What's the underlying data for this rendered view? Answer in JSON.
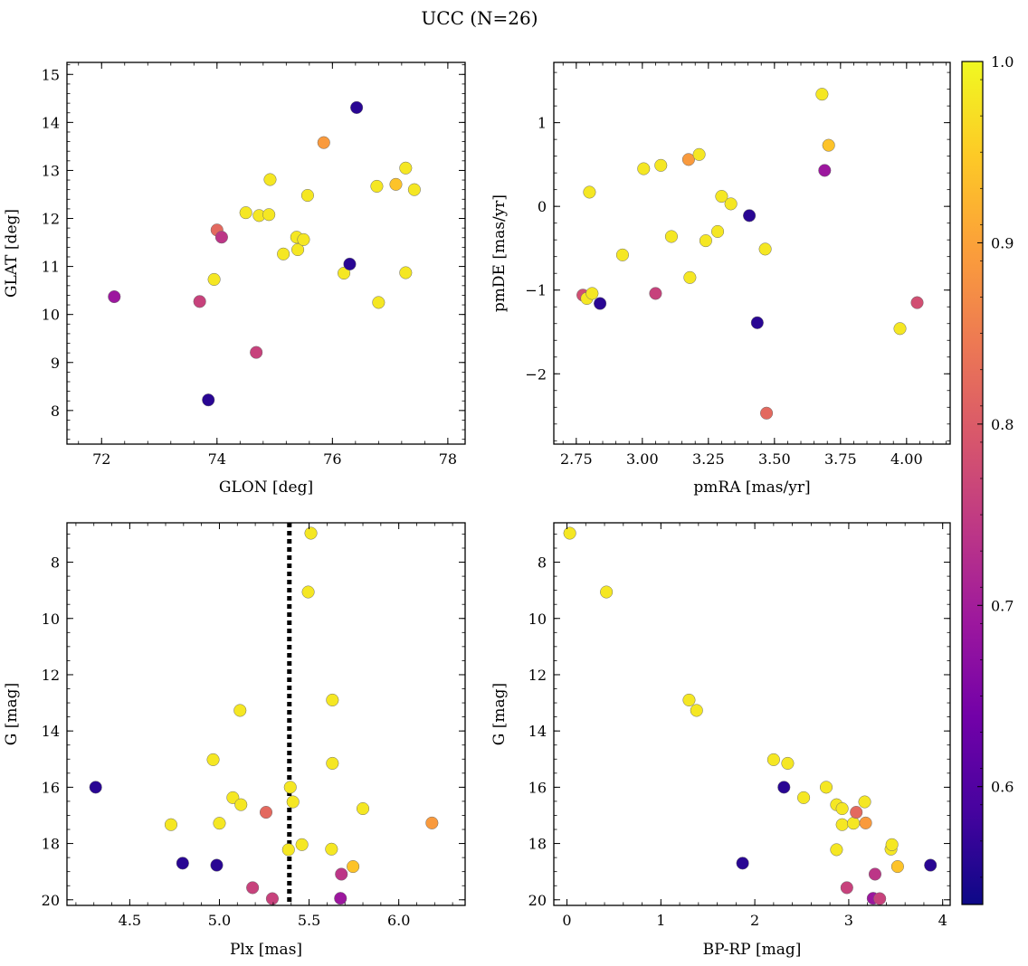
{
  "figure": {
    "title": "UCC (N=26)"
  },
  "colorbar": {
    "cmap": [
      "#0d0887",
      "#46039f",
      "#7201a8",
      "#9c179e",
      "#bd3786",
      "#d8576b",
      "#ed7953",
      "#fb9f3a",
      "#fdca26",
      "#f0f921"
    ],
    "range": [
      0.535,
      1.0
    ],
    "ticks": [
      0.6,
      0.7,
      0.8,
      0.9,
      1.0
    ],
    "tick_labels": [
      "0.6",
      "0.7",
      "0.8",
      "0.9",
      "1.0"
    ]
  },
  "chart_data": [
    {
      "type": "scatter",
      "name": "glon-glat",
      "xlabel": "GLON [deg]",
      "ylabel": "GLAT [deg]",
      "xlim": [
        71.4,
        78.3
      ],
      "ylim": [
        7.3,
        15.25
      ],
      "yinvert": false,
      "xticks": [
        72,
        74,
        76,
        78
      ],
      "xtick_labels": [
        "72",
        "74",
        "76",
        "78"
      ],
      "yticks": [
        8,
        9,
        10,
        11,
        12,
        13,
        14,
        15
      ],
      "ytick_labels": [
        "8",
        "9",
        "10",
        "11",
        "12",
        "13",
        "14",
        "15"
      ],
      "points": [
        {
          "x": 72.22,
          "y": 10.37,
          "c": 0.69
        },
        {
          "x": 73.7,
          "y": 10.27,
          "c": 0.76
        },
        {
          "x": 73.85,
          "y": 8.22,
          "c": 0.56
        },
        {
          "x": 73.95,
          "y": 10.73,
          "c": 0.98
        },
        {
          "x": 74.0,
          "y": 11.76,
          "c": 0.82
        },
        {
          "x": 74.08,
          "y": 11.61,
          "c": 0.74
        },
        {
          "x": 74.5,
          "y": 12.12,
          "c": 0.98
        },
        {
          "x": 74.68,
          "y": 9.21,
          "c": 0.76
        },
        {
          "x": 74.73,
          "y": 12.06,
          "c": 0.98
        },
        {
          "x": 74.9,
          "y": 12.08,
          "c": 0.98
        },
        {
          "x": 74.92,
          "y": 12.81,
          "c": 0.98
        },
        {
          "x": 75.15,
          "y": 11.26,
          "c": 0.98
        },
        {
          "x": 75.38,
          "y": 11.61,
          "c": 0.98
        },
        {
          "x": 75.4,
          "y": 11.35,
          "c": 0.98
        },
        {
          "x": 75.5,
          "y": 11.56,
          "c": 0.98
        },
        {
          "x": 75.57,
          "y": 12.48,
          "c": 0.98
        },
        {
          "x": 75.85,
          "y": 13.58,
          "c": 0.89
        },
        {
          "x": 76.2,
          "y": 10.86,
          "c": 0.98
        },
        {
          "x": 76.3,
          "y": 11.05,
          "c": 0.56
        },
        {
          "x": 76.42,
          "y": 14.31,
          "c": 0.56
        },
        {
          "x": 76.77,
          "y": 12.67,
          "c": 0.98
        },
        {
          "x": 76.8,
          "y": 10.25,
          "c": 0.98
        },
        {
          "x": 77.1,
          "y": 12.71,
          "c": 0.94
        },
        {
          "x": 77.27,
          "y": 13.05,
          "c": 0.98
        },
        {
          "x": 77.27,
          "y": 10.87,
          "c": 0.98
        },
        {
          "x": 77.42,
          "y": 12.6,
          "c": 0.98
        }
      ]
    },
    {
      "type": "scatter",
      "name": "pmra-pmde",
      "xlabel": "pmRA [mas/yr]",
      "ylabel": "pmDE [mas/yr]",
      "xlim": [
        2.665,
        4.165
      ],
      "ylim": [
        -2.84,
        1.72
      ],
      "yinvert": false,
      "xticks": [
        2.75,
        3.0,
        3.25,
        3.5,
        3.75,
        4.0
      ],
      "xtick_labels": [
        "2.75",
        "3.00",
        "3.25",
        "3.50",
        "3.75",
        "4.00"
      ],
      "yticks": [
        -2,
        -1,
        0,
        1
      ],
      "ytick_labels": [
        "−2",
        "−1",
        "0",
        "1"
      ],
      "points": [
        {
          "x": 2.775,
          "y": -1.06,
          "c": 0.78
        },
        {
          "x": 2.79,
          "y": -1.1,
          "c": 0.98
        },
        {
          "x": 2.8,
          "y": 0.17,
          "c": 0.98
        },
        {
          "x": 2.81,
          "y": -1.04,
          "c": 0.98
        },
        {
          "x": 2.84,
          "y": -1.16,
          "c": 0.56
        },
        {
          "x": 2.925,
          "y": -0.58,
          "c": 0.98
        },
        {
          "x": 3.005,
          "y": 0.45,
          "c": 0.98
        },
        {
          "x": 3.05,
          "y": -1.04,
          "c": 0.76
        },
        {
          "x": 3.07,
          "y": 0.49,
          "c": 0.98
        },
        {
          "x": 3.11,
          "y": -0.36,
          "c": 0.98
        },
        {
          "x": 3.175,
          "y": 0.56,
          "c": 0.89
        },
        {
          "x": 3.18,
          "y": -0.85,
          "c": 0.98
        },
        {
          "x": 3.215,
          "y": 0.62,
          "c": 0.98
        },
        {
          "x": 3.24,
          "y": -0.41,
          "c": 0.98
        },
        {
          "x": 3.285,
          "y": -0.3,
          "c": 0.98
        },
        {
          "x": 3.3,
          "y": 0.12,
          "c": 0.98
        },
        {
          "x": 3.335,
          "y": 0.03,
          "c": 0.98
        },
        {
          "x": 3.405,
          "y": -0.11,
          "c": 0.56
        },
        {
          "x": 3.435,
          "y": -1.39,
          "c": 0.56
        },
        {
          "x": 3.465,
          "y": -0.51,
          "c": 0.98
        },
        {
          "x": 3.47,
          "y": -2.47,
          "c": 0.82
        },
        {
          "x": 3.68,
          "y": 1.34,
          "c": 0.98
        },
        {
          "x": 3.69,
          "y": 0.43,
          "c": 0.69
        },
        {
          "x": 3.705,
          "y": 0.73,
          "c": 0.94
        },
        {
          "x": 3.975,
          "y": -1.46,
          "c": 0.98
        },
        {
          "x": 4.04,
          "y": -1.15,
          "c": 0.78
        }
      ]
    },
    {
      "type": "scatter",
      "name": "plx-g",
      "xlabel": "Plx [mas]",
      "ylabel": "G [mag]",
      "xlim": [
        4.15,
        6.37
      ],
      "ylim": [
        6.6,
        20.2
      ],
      "yinvert": true,
      "xticks": [
        4.5,
        5.0,
        5.5,
        6.0
      ],
      "xtick_labels": [
        "4.5",
        "5.0",
        "5.5",
        "6.0"
      ],
      "yticks": [
        8,
        10,
        12,
        14,
        16,
        18,
        20
      ],
      "ytick_labels": [
        "8",
        "10",
        "12",
        "14",
        "16",
        "18",
        "20"
      ],
      "vline": {
        "x": 5.39,
        "style": "dotted"
      },
      "points": [
        {
          "x": 4.31,
          "y": 16.0,
          "c": 0.56
        },
        {
          "x": 4.73,
          "y": 17.33,
          "c": 0.98
        },
        {
          "x": 4.795,
          "y": 18.7,
          "c": 0.56
        },
        {
          "x": 4.965,
          "y": 15.02,
          "c": 0.98
        },
        {
          "x": 4.985,
          "y": 18.77,
          "c": 0.56
        },
        {
          "x": 5.0,
          "y": 17.28,
          "c": 0.98
        },
        {
          "x": 5.075,
          "y": 16.37,
          "c": 0.98
        },
        {
          "x": 5.115,
          "y": 13.27,
          "c": 0.98
        },
        {
          "x": 5.12,
          "y": 16.62,
          "c": 0.98
        },
        {
          "x": 5.185,
          "y": 19.57,
          "c": 0.76
        },
        {
          "x": 5.26,
          "y": 16.89,
          "c": 0.82
        },
        {
          "x": 5.295,
          "y": 19.96,
          "c": 0.76
        },
        {
          "x": 5.385,
          "y": 18.22,
          "c": 0.98
        },
        {
          "x": 5.395,
          "y": 16.0,
          "c": 0.98
        },
        {
          "x": 5.41,
          "y": 16.52,
          "c": 0.98
        },
        {
          "x": 5.46,
          "y": 18.04,
          "c": 0.98
        },
        {
          "x": 5.495,
          "y": 9.06,
          "c": 0.98
        },
        {
          "x": 5.51,
          "y": 6.97,
          "c": 0.98
        },
        {
          "x": 5.625,
          "y": 18.2,
          "c": 0.98
        },
        {
          "x": 5.63,
          "y": 15.15,
          "c": 0.98
        },
        {
          "x": 5.63,
          "y": 12.9,
          "c": 0.98
        },
        {
          "x": 5.675,
          "y": 19.95,
          "c": 0.69
        },
        {
          "x": 5.68,
          "y": 19.09,
          "c": 0.74
        },
        {
          "x": 5.745,
          "y": 18.82,
          "c": 0.94
        },
        {
          "x": 5.8,
          "y": 16.76,
          "c": 0.98
        },
        {
          "x": 6.185,
          "y": 17.27,
          "c": 0.89
        }
      ]
    },
    {
      "type": "scatter",
      "name": "bprp-g",
      "xlabel": "BP-RP [mag]",
      "ylabel": "G [mag]",
      "xlim": [
        -0.14,
        4.08
      ],
      "ylim": [
        6.6,
        20.2
      ],
      "yinvert": true,
      "xticks": [
        0,
        1,
        2,
        3,
        4
      ],
      "xtick_labels": [
        "0",
        "1",
        "2",
        "3",
        "4"
      ],
      "yticks": [
        8,
        10,
        12,
        14,
        16,
        18,
        20
      ],
      "ytick_labels": [
        "8",
        "10",
        "12",
        "14",
        "16",
        "18",
        "20"
      ],
      "points": [
        {
          "x": 0.03,
          "y": 6.97,
          "c": 0.98
        },
        {
          "x": 0.42,
          "y": 9.06,
          "c": 0.98
        },
        {
          "x": 1.3,
          "y": 12.9,
          "c": 0.98
        },
        {
          "x": 1.38,
          "y": 13.27,
          "c": 0.98
        },
        {
          "x": 1.87,
          "y": 18.7,
          "c": 0.56
        },
        {
          "x": 2.2,
          "y": 15.02,
          "c": 0.98
        },
        {
          "x": 2.31,
          "y": 16.0,
          "c": 0.56
        },
        {
          "x": 2.35,
          "y": 15.15,
          "c": 0.98
        },
        {
          "x": 2.52,
          "y": 16.37,
          "c": 0.98
        },
        {
          "x": 2.76,
          "y": 16.0,
          "c": 0.98
        },
        {
          "x": 2.87,
          "y": 16.62,
          "c": 0.98
        },
        {
          "x": 2.87,
          "y": 18.22,
          "c": 0.98
        },
        {
          "x": 2.93,
          "y": 16.76,
          "c": 0.98
        },
        {
          "x": 2.93,
          "y": 17.33,
          "c": 0.98
        },
        {
          "x": 2.98,
          "y": 19.57,
          "c": 0.76
        },
        {
          "x": 3.05,
          "y": 17.28,
          "c": 0.98
        },
        {
          "x": 3.08,
          "y": 16.89,
          "c": 0.82
        },
        {
          "x": 3.17,
          "y": 16.52,
          "c": 0.98
        },
        {
          "x": 3.18,
          "y": 17.27,
          "c": 0.89
        },
        {
          "x": 3.26,
          "y": 19.95,
          "c": 0.69
        },
        {
          "x": 3.28,
          "y": 19.09,
          "c": 0.74
        },
        {
          "x": 3.33,
          "y": 19.96,
          "c": 0.76
        },
        {
          "x": 3.45,
          "y": 18.2,
          "c": 0.98
        },
        {
          "x": 3.46,
          "y": 18.04,
          "c": 0.98
        },
        {
          "x": 3.52,
          "y": 18.82,
          "c": 0.94
        },
        {
          "x": 3.87,
          "y": 18.77,
          "c": 0.56
        }
      ]
    }
  ]
}
